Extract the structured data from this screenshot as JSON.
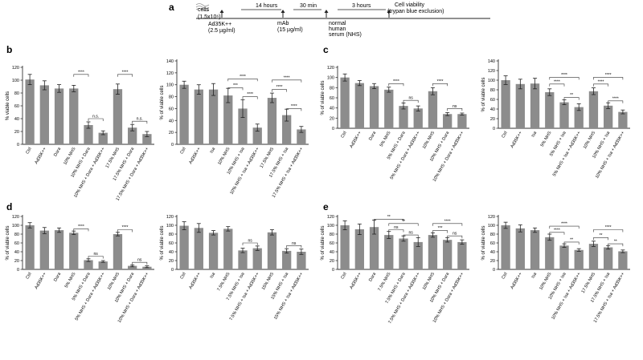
{
  "timeline": {
    "letter": "a",
    "cells": "cells",
    "cells_count": "(1.5x10⁶)",
    "virus": "Ad35K++",
    "virus_dose": "(2.5 µg/ml)",
    "t1": "14 hours",
    "mab": "mAb",
    "mab_dose": "(15 µg/ml)",
    "t2": "30 min",
    "nhs1": "normal",
    "nhs2": "human",
    "nhs3": "serum (NHS)",
    "t3": "3 hours",
    "read1": "Cell viability",
    "read2": "(trypan blue exclusion)"
  },
  "colors": {
    "bar": "#8c8c8c",
    "axis": "#333333",
    "text": "#222222"
  },
  "chart_data": [
    {
      "panel_letter": "b",
      "type": "bar",
      "ylabel": "% viable cells",
      "ylim": [
        0,
        120
      ],
      "yticks": [
        0,
        20,
        40,
        60,
        80,
        100,
        120
      ],
      "categories": [
        "Ctrl",
        "Ad35K++",
        "Dara",
        "10% NHS",
        "10% NHS + Dara",
        "10% NHS + Dara + Ad35K++",
        "17.5% NHS",
        "17.5% NHS + Dara",
        "17.5% NHS + Dara + Ad35K++"
      ],
      "values": [
        101,
        92,
        87,
        87,
        30,
        18,
        86,
        26,
        16
      ],
      "errors": [
        8,
        7,
        6,
        5,
        5,
        3,
        8,
        5,
        4
      ],
      "brackets": [
        {
          "from": 3,
          "to": 4,
          "level": 109,
          "label": "****"
        },
        {
          "from": 4,
          "to": 5,
          "level": 40,
          "label": "n.s."
        },
        {
          "from": 6,
          "to": 7,
          "level": 109,
          "label": "****"
        },
        {
          "from": 7,
          "to": 8,
          "level": 36,
          "label": "n.s."
        }
      ]
    },
    {
      "panel_letter": "",
      "type": "bar",
      "ylabel": "% of viable cells",
      "ylim": [
        0,
        140
      ],
      "yticks": [
        0,
        20,
        40,
        60,
        80,
        100,
        120,
        140
      ],
      "categories": [
        "Ctrl",
        "Ad35K++",
        "Isa",
        "10% NHS",
        "10% NHS + Isa",
        "10% NHS + Isa + Ad35K++",
        "17.5% NHS",
        "17.5% NHS + Isa",
        "17.5% NHS + Isa + Ad35K++"
      ],
      "values": [
        100,
        92,
        92,
        82,
        60,
        28,
        78,
        49,
        25
      ],
      "errors": [
        6,
        8,
        10,
        12,
        15,
        6,
        8,
        10,
        5
      ],
      "brackets": [
        {
          "from": 3,
          "to": 4,
          "level": 95,
          "label": "***"
        },
        {
          "from": 3,
          "to": 5,
          "level": 110,
          "label": "****"
        },
        {
          "from": 4,
          "to": 5,
          "level": 80,
          "label": "****"
        },
        {
          "from": 6,
          "to": 7,
          "level": 92,
          "label": "****"
        },
        {
          "from": 6,
          "to": 8,
          "level": 108,
          "label": "****"
        },
        {
          "from": 7,
          "to": 8,
          "level": 60,
          "label": "****"
        }
      ]
    },
    {
      "panel_letter": "c",
      "type": "bar",
      "ylabel": "% of viable cells",
      "ylim": [
        0,
        120
      ],
      "yticks": [
        0,
        20,
        40,
        60,
        80,
        100,
        120
      ],
      "categories": [
        "Ctrl",
        "Ad35K++",
        "Dara",
        "5% NHS",
        "5% NHS + Dara",
        "5% NHS + Dara + Ad35K++",
        "10% NHS",
        "10% NHS + Dara",
        "10% NHS + Dara + Ad35K++"
      ],
      "values": [
        100,
        89,
        83,
        76,
        44,
        39,
        73,
        28,
        28
      ],
      "errors": [
        7,
        5,
        5,
        5,
        6,
        5,
        7,
        3,
        2
      ],
      "brackets": [
        {
          "from": 3,
          "to": 4,
          "level": 88,
          "label": "****"
        },
        {
          "from": 4,
          "to": 5,
          "level": 55,
          "label": "ns"
        },
        {
          "from": 6,
          "to": 7,
          "level": 88,
          "label": "****"
        },
        {
          "from": 7,
          "to": 8,
          "level": 39,
          "label": "ns"
        }
      ]
    },
    {
      "panel_letter": "",
      "type": "bar",
      "ylabel": "% of viable cells",
      "ylim": [
        0,
        140
      ],
      "yticks": [
        0,
        20,
        40,
        60,
        80,
        100,
        120,
        140
      ],
      "categories": [
        "Ctrl",
        "Ad35K++",
        "Isa",
        "5% NHS",
        "5% NHS + Isa",
        "5% NHS + Isa + Ad35K++",
        "10% NHS",
        "10% NHS + Isa",
        "10% NHS + Isa + Ad35K++"
      ],
      "values": [
        100,
        92,
        93,
        75,
        54,
        44,
        77,
        47,
        34
      ],
      "errors": [
        9,
        10,
        11,
        7,
        5,
        7,
        7,
        6,
        4
      ],
      "brackets": [
        {
          "from": 3,
          "to": 4,
          "level": 92,
          "label": "****"
        },
        {
          "from": 3,
          "to": 5,
          "level": 106,
          "label": "****"
        },
        {
          "from": 4,
          "to": 5,
          "level": 64,
          "label": "**"
        },
        {
          "from": 6,
          "to": 7,
          "level": 92,
          "label": "****"
        },
        {
          "from": 6,
          "to": 8,
          "level": 106,
          "label": "****"
        },
        {
          "from": 7,
          "to": 8,
          "level": 57,
          "label": "****"
        }
      ]
    },
    {
      "panel_letter": "d",
      "type": "bar",
      "ylabel": "% of viable cells",
      "ylim": [
        0,
        120
      ],
      "yticks": [
        0,
        20,
        40,
        60,
        80,
        100,
        120
      ],
      "categories": [
        "Ctrl",
        "Ad35K++",
        "Dara",
        "5% NHS",
        "5% NHS + Dara",
        "5% NHS + Dara + Ad35K++",
        "10% NHS",
        "10% NHS + Dara",
        "10% NHS + Dara + Ad35K++"
      ],
      "values": [
        100,
        88,
        89,
        83,
        21,
        18,
        80,
        8,
        6
      ],
      "errors": [
        6,
        7,
        5,
        4,
        3,
        2,
        4,
        2,
        2
      ],
      "brackets": [
        {
          "from": 3,
          "to": 4,
          "level": 92,
          "label": "****"
        },
        {
          "from": 4,
          "to": 5,
          "level": 30,
          "label": "ns"
        },
        {
          "from": 6,
          "to": 7,
          "level": 90,
          "label": "****"
        },
        {
          "from": 7,
          "to": 8,
          "level": 16,
          "label": "ns"
        }
      ]
    },
    {
      "panel_letter": "",
      "type": "bar",
      "ylabel": "% of viable cells",
      "ylim": [
        0,
        120
      ],
      "yticks": [
        0,
        20,
        40,
        60,
        80,
        100,
        120
      ],
      "categories": [
        "Ctrl",
        "Ad35K++",
        "Isa",
        "7.5% NHS",
        "7.5% NHS + Isa",
        "7.5% NHS + Isa + Ad35K++",
        "15% NHS",
        "15% NHS + Isa",
        "15% NHS + Isa + Ad35K++"
      ],
      "values": [
        99,
        94,
        83,
        92,
        43,
        48,
        84,
        42,
        40
      ],
      "errors": [
        9,
        10,
        5,
        5,
        5,
        5,
        6,
        5,
        6
      ],
      "brackets": [
        {
          "from": 4,
          "to": 5,
          "level": 60,
          "label": "ns"
        },
        {
          "from": 7,
          "to": 8,
          "level": 54,
          "label": "ns"
        }
      ]
    },
    {
      "panel_letter": "e",
      "type": "bar",
      "ylabel": "% of viable cells",
      "ylim": [
        0,
        120
      ],
      "yticks": [
        0,
        20,
        40,
        60,
        80,
        100,
        120
      ],
      "categories": [
        "Ctrl",
        "Ad35K++",
        "Dara",
        "7.5% NHS",
        "7.5% NHS + Dara",
        "7.5% NHS + Dara + Ad35K++",
        "10% NHS",
        "10% NHS + Dara",
        "10% NHS + Dara + Ad35K++"
      ],
      "values": [
        100,
        91,
        96,
        78,
        70,
        62,
        78,
        67,
        62
      ],
      "errors": [
        10,
        12,
        16,
        8,
        6,
        10,
        5,
        5,
        5
      ],
      "brackets": [
        {
          "from": 2,
          "to": 4,
          "level": 114,
          "label": "**"
        },
        {
          "from": 3,
          "to": 5,
          "level": 104,
          "label": "**"
        },
        {
          "from": 3,
          "to": 4,
          "level": 90,
          "label": "ns"
        },
        {
          "from": 4,
          "to": 5,
          "level": 78,
          "label": "ns"
        },
        {
          "from": 6,
          "to": 7,
          "level": 88,
          "label": "***"
        },
        {
          "from": 6,
          "to": 8,
          "level": 104,
          "label": "****"
        },
        {
          "from": 7,
          "to": 8,
          "level": 76,
          "label": "ns"
        }
      ]
    },
    {
      "panel_letter": "",
      "type": "bar",
      "ylabel": "% of viable cells",
      "ylim": [
        0,
        120
      ],
      "yticks": [
        0,
        20,
        40,
        60,
        80,
        100,
        120
      ],
      "categories": [
        "Ctrl",
        "Ad35K++",
        "Isa",
        "10% NHS",
        "10% NHS + Isa",
        "10% NHS + Isa + Ad35K++",
        "17.5% NHS",
        "17.5% NHS + Isa",
        "17.5% NHS + Isa + Ad35K++"
      ],
      "values": [
        100,
        93,
        89,
        73,
        54,
        44,
        58,
        50,
        41
      ],
      "errors": [
        7,
        8,
        5,
        7,
        4,
        3,
        6,
        4,
        3
      ],
      "brackets": [
        {
          "from": 3,
          "to": 4,
          "level": 84,
          "label": "****"
        },
        {
          "from": 3,
          "to": 5,
          "level": 98,
          "label": "****"
        },
        {
          "from": 4,
          "to": 5,
          "level": 62,
          "label": "**"
        },
        {
          "from": 6,
          "to": 7,
          "level": 72,
          "label": "**"
        },
        {
          "from": 6,
          "to": 8,
          "level": 90,
          "label": "****"
        },
        {
          "from": 7,
          "to": 8,
          "level": 58,
          "label": "**"
        }
      ]
    }
  ]
}
